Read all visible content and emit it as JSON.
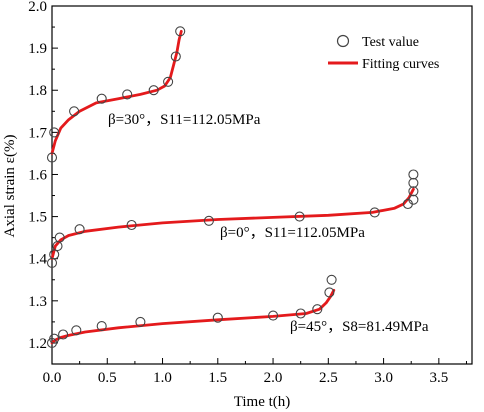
{
  "chart_data": {
    "type": "scatter",
    "xlabel": "Time t(h)",
    "ylabel": "Axial strain ε(%)",
    "xlim": [
      0,
      3.8
    ],
    "ylim": [
      1.15,
      2.0
    ],
    "xticks": [
      "0.0",
      "0.5",
      "1.0",
      "1.5",
      "2.0",
      "2.5",
      "3.0",
      "3.5"
    ],
    "xtick_values": [
      0,
      0.5,
      1.0,
      1.5,
      2.0,
      2.5,
      3.0,
      3.5
    ],
    "yticks": [
      "1.2",
      "1.3",
      "1.4",
      "1.5",
      "1.6",
      "1.7",
      "1.8",
      "1.9",
      "2.0"
    ],
    "ytick_values": [
      1.2,
      1.3,
      1.4,
      1.5,
      1.6,
      1.7,
      1.8,
      1.9,
      2.0
    ],
    "legend": {
      "placement": "top-right",
      "entries": [
        "Test value",
        "Fitting curves"
      ]
    },
    "colors": {
      "fit": "#e41a1c",
      "marker": "#444444",
      "axis": "#000000"
    },
    "annotations": [
      "β=30°，S11=112.05MPa",
      "β=0°，S11=112.05MPa",
      "β=45°，S8=81.49MPa"
    ],
    "series": [
      {
        "name": "Test value",
        "group": "β=30°",
        "x": [
          0.0,
          0.02,
          0.2,
          0.45,
          0.68,
          0.92,
          1.05,
          1.12,
          1.16
        ],
        "y": [
          1.64,
          1.7,
          1.75,
          1.78,
          1.79,
          1.8,
          1.82,
          1.88,
          1.94
        ]
      },
      {
        "name": "Fitting curves",
        "group": "β=30°",
        "x": [
          0.0,
          0.03,
          0.08,
          0.15,
          0.25,
          0.4,
          0.6,
          0.8,
          0.95,
          1.02,
          1.07,
          1.1,
          1.13,
          1.15,
          1.17
        ],
        "y": [
          1.65,
          1.68,
          1.71,
          1.73,
          1.75,
          1.77,
          1.78,
          1.79,
          1.8,
          1.81,
          1.83,
          1.86,
          1.89,
          1.92,
          1.94
        ]
      },
      {
        "name": "Test value",
        "group": "β=0°",
        "x": [
          0.0,
          0.02,
          0.05,
          0.07,
          0.25,
          0.72,
          1.42,
          2.24,
          2.92,
          3.22,
          3.27,
          3.27,
          3.27,
          3.27
        ],
        "y": [
          1.39,
          1.41,
          1.43,
          1.45,
          1.47,
          1.48,
          1.49,
          1.5,
          1.51,
          1.53,
          1.54,
          1.56,
          1.58,
          1.6
        ]
      },
      {
        "name": "Fitting curves",
        "group": "β=0°",
        "x": [
          0.0,
          0.03,
          0.08,
          0.15,
          0.3,
          0.6,
          1.0,
          1.5,
          2.0,
          2.5,
          2.9,
          3.1,
          3.18,
          3.23,
          3.27
        ],
        "y": [
          1.4,
          1.43,
          1.445,
          1.455,
          1.465,
          1.475,
          1.485,
          1.493,
          1.498,
          1.503,
          1.51,
          1.52,
          1.53,
          1.545,
          1.565
        ]
      },
      {
        "name": "Test value",
        "group": "β=45°",
        "x": [
          0.0,
          0.02,
          0.1,
          0.22,
          0.45,
          0.8,
          1.5,
          2.0,
          2.25,
          2.4,
          2.51,
          2.53
        ],
        "y": [
          1.2,
          1.21,
          1.22,
          1.23,
          1.24,
          1.25,
          1.26,
          1.265,
          1.27,
          1.28,
          1.32,
          1.35
        ]
      },
      {
        "name": "Fitting curves",
        "group": "β=45°",
        "x": [
          0.0,
          0.03,
          0.08,
          0.15,
          0.3,
          0.6,
          1.0,
          1.5,
          2.0,
          2.3,
          2.42,
          2.48,
          2.52,
          2.55
        ],
        "y": [
          1.2,
          1.207,
          1.213,
          1.218,
          1.226,
          1.236,
          1.246,
          1.255,
          1.263,
          1.27,
          1.28,
          1.295,
          1.31,
          1.325
        ]
      }
    ]
  }
}
